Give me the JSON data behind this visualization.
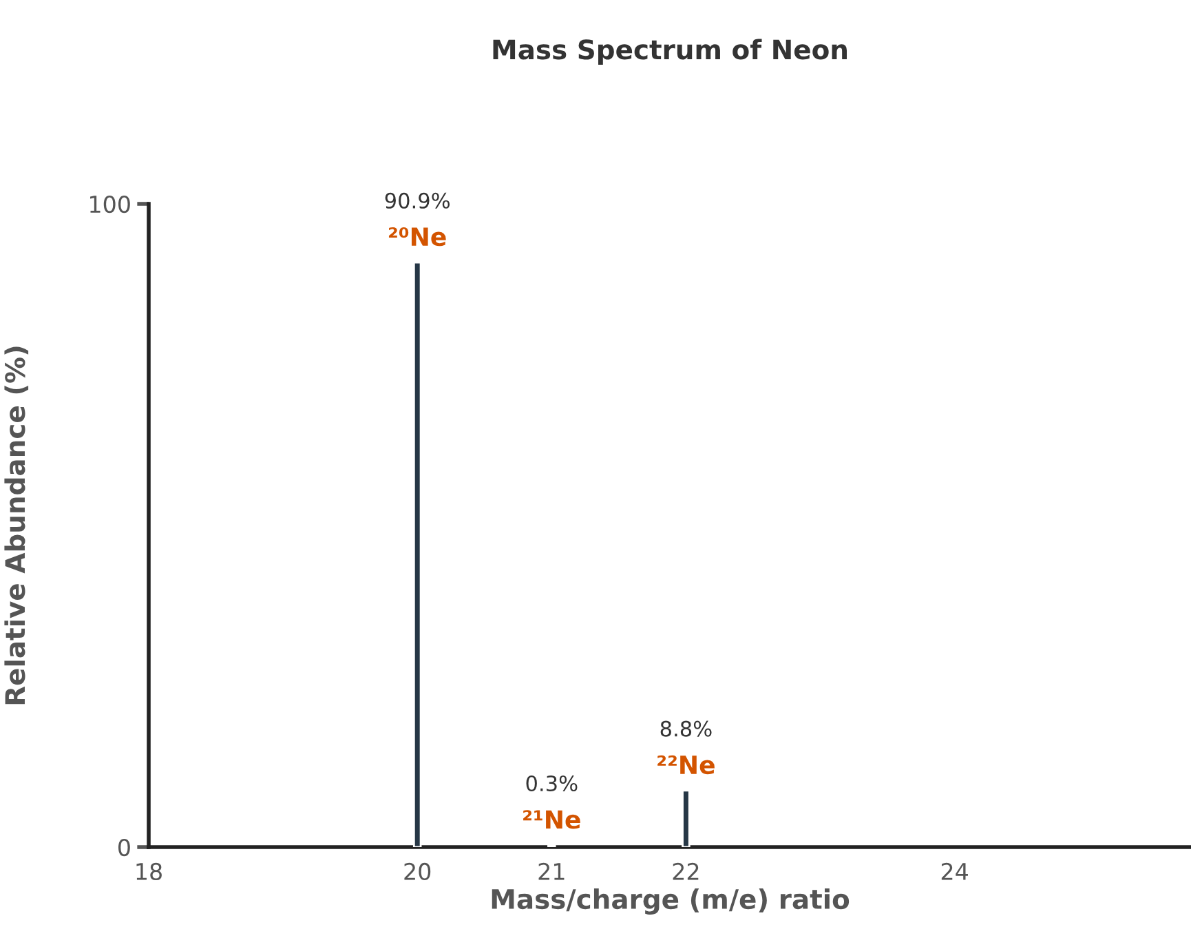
{
  "chart_data": {
    "type": "bar",
    "title": "Mass Spectrum of Neon",
    "xlabel": "Mass/charge (m/e) ratio",
    "ylabel": "Relative Abundance (%)",
    "x": [
      20,
      21,
      22
    ],
    "values": [
      90.9,
      0.3,
      8.8
    ],
    "color": "#263746",
    "value_labels": [
      "90.9%",
      "0.3%",
      "8.8%"
    ],
    "annotations": [
      {
        "text": "²⁰Ne",
        "x": 20,
        "y": 90.9
      },
      {
        "text": "²¹Ne",
        "x": 21,
        "y": 0.3
      },
      {
        "text": "²²Ne",
        "x": 22,
        "y": 8.8
      }
    ],
    "xlim": [
      18,
      25.76
    ],
    "xticks": [
      18,
      20,
      21,
      22,
      24
    ],
    "ylim": [
      0,
      100
    ],
    "yticks": [
      0,
      100
    ],
    "grid": false,
    "legend": false
  }
}
